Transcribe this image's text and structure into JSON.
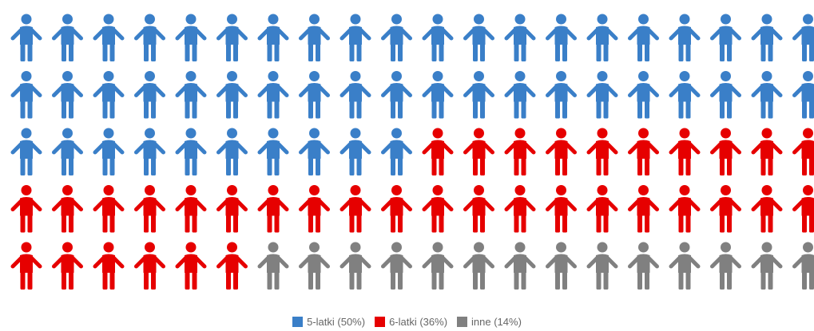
{
  "chart_data": {
    "type": "pictogram",
    "total_icons": 100,
    "columns": 20,
    "rows": 5,
    "series": [
      {
        "name": "5-latki (50%)",
        "value": 50,
        "color": "#3a7fc8"
      },
      {
        "name": "6-latki (36%)",
        "value": 36,
        "color": "#e60000"
      },
      {
        "name": "inne (14%)",
        "value": 14,
        "color": "#808080"
      }
    ],
    "legend_position": "bottom-center"
  }
}
